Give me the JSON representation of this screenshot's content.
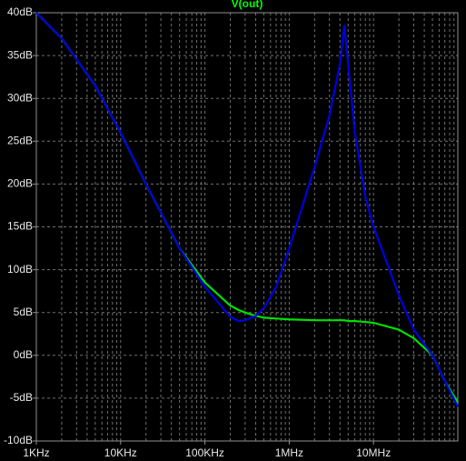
{
  "chart_data": {
    "type": "line",
    "title": "V(out)",
    "title_color": "#00ff00",
    "x": [
      1000,
      2000,
      5000,
      10000,
      20000,
      50000,
      100000,
      200000,
      250000,
      300000,
      400000,
      500000,
      700000,
      1000000,
      2000000,
      3000000,
      4000000,
      4500000,
      5000000,
      6000000,
      8000000,
      10000000,
      20000000,
      30000000,
      50000000,
      70000000,
      100000000
    ],
    "series": [
      {
        "color": "#00e000",
        "values": [
          40,
          37,
          31.5,
          26,
          20,
          12.5,
          8.5,
          5.8,
          5.3,
          5,
          4.6,
          4.4,
          4.3,
          4.2,
          4.1,
          4.1,
          4.1,
          4.1,
          4,
          4,
          3.9,
          3.8,
          3,
          2,
          0,
          -3,
          -5.5
        ]
      },
      {
        "color": "#0000e0",
        "values": [
          40,
          37,
          31.5,
          26,
          20,
          12.5,
          8,
          4.5,
          4,
          4.1,
          4.6,
          5.5,
          8,
          12.5,
          22,
          28,
          34,
          38.5,
          34,
          26,
          18.5,
          15,
          7,
          3,
          0,
          -3,
          -6
        ]
      }
    ],
    "xlim": [
      1000,
      100000000
    ],
    "xscale": "log",
    "xticks": [
      {
        "value": 1000,
        "label": "1KHz"
      },
      {
        "value": 10000,
        "label": "10KHz"
      },
      {
        "value": 100000,
        "label": "100KHz"
      },
      {
        "value": 1000000,
        "label": "1MHz"
      },
      {
        "value": 10000000,
        "label": "10MHz"
      }
    ],
    "ylim": [
      -10,
      40
    ],
    "yticks": [
      {
        "value": -10,
        "label": "-10dB"
      },
      {
        "value": -5,
        "label": "-5dB"
      },
      {
        "value": 0,
        "label": "0dB"
      },
      {
        "value": 5,
        "label": "5dB"
      },
      {
        "value": 10,
        "label": "10dB"
      },
      {
        "value": 15,
        "label": "15dB"
      },
      {
        "value": 20,
        "label": "20dB"
      },
      {
        "value": 25,
        "label": "25dB"
      },
      {
        "value": 30,
        "label": "30dB"
      },
      {
        "value": 35,
        "label": "35dB"
      },
      {
        "value": 40,
        "label": "40dB"
      }
    ],
    "grid": true
  }
}
